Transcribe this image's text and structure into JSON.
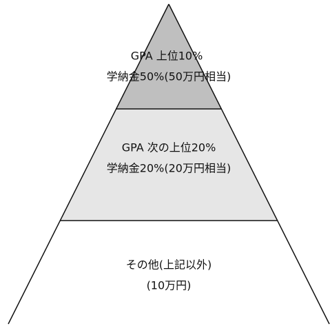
{
  "tiers": [
    {
      "lines": [
        "GPA 上位10%",
        "学納金50%(50万円相当)"
      ]
    },
    {
      "lines": [
        "GPA 次の上位20%",
        "学納金20%(20万円相当)"
      ]
    },
    {
      "lines": [
        "その他(上記以外)",
        "(10万円)"
      ]
    }
  ]
}
